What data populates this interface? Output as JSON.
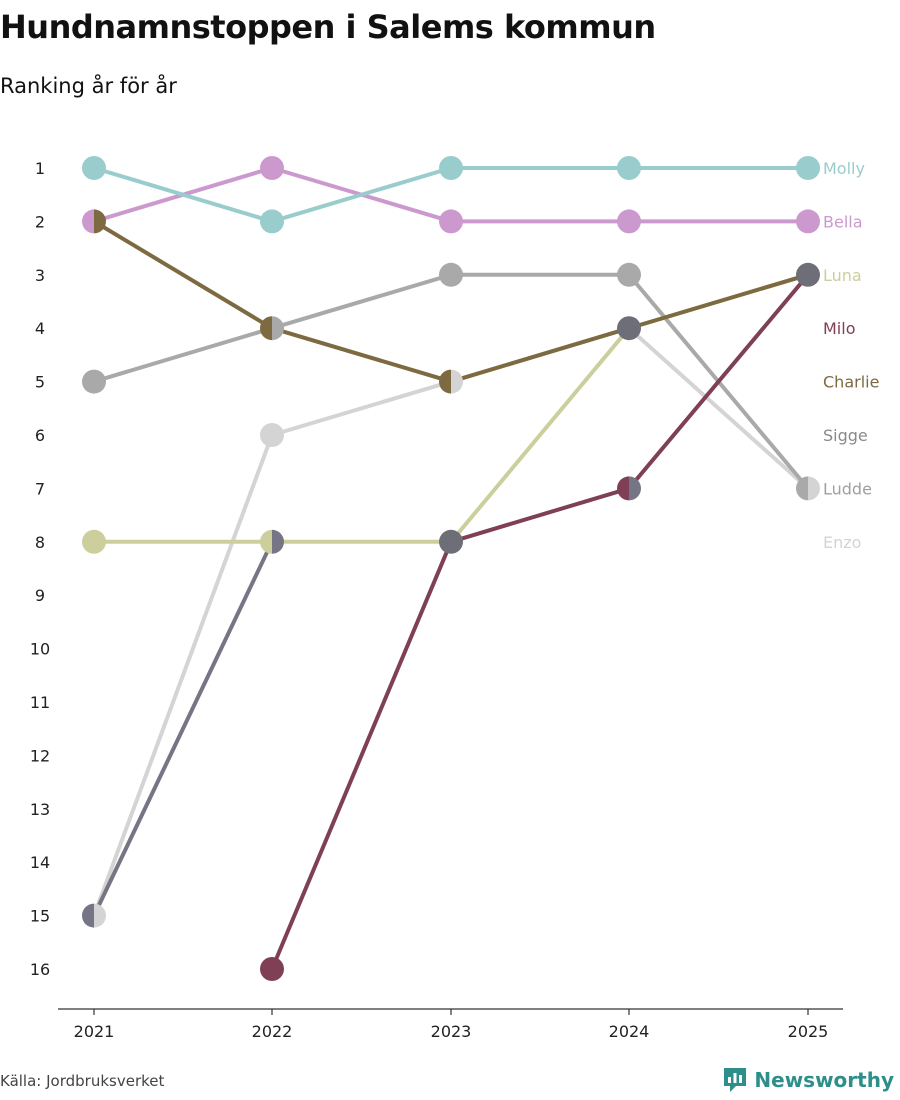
{
  "title": "Hundnamnstoppen i Salems kommun",
  "subtitle": "Ranking år för år",
  "source": "Källa: Jordbruksverket",
  "logo_text": "Newsworthy",
  "logo_icon": "bar-chart-icon",
  "chart_data": {
    "type": "bump",
    "title": "Hundnamnstoppen i Salems kommun",
    "subtitle": "Ranking år för år",
    "x": [
      "2021",
      "2022",
      "2023",
      "2024",
      "2025"
    ],
    "y_ticks": [
      "1",
      "2",
      "3",
      "4",
      "5",
      "6",
      "7",
      "8",
      "9",
      "10",
      "11",
      "12",
      "13",
      "14",
      "15",
      "16"
    ],
    "ylim": [
      1,
      16
    ],
    "y_inverted": true,
    "series": [
      {
        "name": "Enzo",
        "color": "#d4d4d4",
        "values": [
          15,
          6,
          5,
          4,
          7
        ]
      },
      {
        "name": "Sigge",
        "color": "#a9a9a9",
        "values": [
          5,
          4,
          3,
          3,
          7
        ]
      },
      {
        "name": "Ludde",
        "color": "#757585",
        "values": [
          15,
          8,
          null,
          null,
          null
        ]
      },
      {
        "name": "Luna",
        "color": "#cccf9c",
        "values": [
          8,
          8,
          8,
          4,
          3
        ]
      },
      {
        "name": "Charlie",
        "color": "#7d6a40",
        "values": [
          2,
          4,
          5,
          4,
          3
        ]
      },
      {
        "name": "Milo",
        "color": "#7f4055",
        "values": [
          null,
          16,
          8,
          7,
          3
        ]
      },
      {
        "name": "Bella",
        "color": "#cc99cf",
        "values": [
          2,
          1,
          2,
          2,
          2
        ]
      },
      {
        "name": "Molly",
        "color": "#99cccc",
        "values": [
          1,
          2,
          1,
          1,
          1
        ]
      }
    ],
    "labels": [
      {
        "name": "Molly",
        "rank": 1,
        "color": "#99cccc"
      },
      {
        "name": "Bella",
        "rank": 2,
        "color": "#cc99cf"
      },
      {
        "name": "Luna",
        "rank": 3,
        "color": "#cccf9c"
      },
      {
        "name": "Milo",
        "rank": 4,
        "color": "#7f4055"
      },
      {
        "name": "Charlie",
        "rank": 5,
        "color": "#7d6a40"
      },
      {
        "name": "Sigge",
        "rank": 6,
        "color": "#8a8a8a"
      },
      {
        "name": "Ludde",
        "rank": 7,
        "color": "#a0a0a0"
      },
      {
        "name": "Enzo",
        "rank": 8,
        "color": "#d4d4d4"
      }
    ],
    "markers": [
      {
        "x": "2021",
        "rank": 1,
        "colors": [
          "#99cccc"
        ]
      },
      {
        "x": "2021",
        "rank": 2,
        "colors": [
          "#cc99cf",
          "#7d6a40"
        ]
      },
      {
        "x": "2021",
        "rank": 5,
        "colors": [
          "#a9a9a9"
        ]
      },
      {
        "x": "2021",
        "rank": 8,
        "colors": [
          "#cccf9c"
        ]
      },
      {
        "x": "2021",
        "rank": 15,
        "colors": [
          "#757585",
          "#d4d4d4"
        ]
      },
      {
        "x": "2022",
        "rank": 1,
        "colors": [
          "#cc99cf"
        ]
      },
      {
        "x": "2022",
        "rank": 2,
        "colors": [
          "#99cccc"
        ]
      },
      {
        "x": "2022",
        "rank": 4,
        "colors": [
          "#7d6a40",
          "#a9a9a9"
        ]
      },
      {
        "x": "2022",
        "rank": 6,
        "colors": [
          "#d4d4d4"
        ]
      },
      {
        "x": "2022",
        "rank": 8,
        "colors": [
          "#cccf9c",
          "#757585"
        ]
      },
      {
        "x": "2022",
        "rank": 16,
        "colors": [
          "#7f4055"
        ]
      },
      {
        "x": "2023",
        "rank": 1,
        "colors": [
          "#99cccc"
        ]
      },
      {
        "x": "2023",
        "rank": 2,
        "colors": [
          "#cc99cf"
        ]
      },
      {
        "x": "2023",
        "rank": 3,
        "colors": [
          "#a9a9a9"
        ]
      },
      {
        "x": "2023",
        "rank": 5,
        "colors": [
          "#7d6a40",
          "#d4d4d4"
        ]
      },
      {
        "x": "2023",
        "rank": 8,
        "colors": [
          "#6e6e78"
        ]
      },
      {
        "x": "2024",
        "rank": 1,
        "colors": [
          "#99cccc"
        ]
      },
      {
        "x": "2024",
        "rank": 2,
        "colors": [
          "#cc99cf"
        ]
      },
      {
        "x": "2024",
        "rank": 3,
        "colors": [
          "#a9a9a9"
        ]
      },
      {
        "x": "2024",
        "rank": 4,
        "colors": [
          "#6e6e78"
        ]
      },
      {
        "x": "2024",
        "rank": 7,
        "colors": [
          "#7f4055",
          "#757585"
        ]
      },
      {
        "x": "2025",
        "rank": 1,
        "colors": [
          "#99cccc"
        ]
      },
      {
        "x": "2025",
        "rank": 2,
        "colors": [
          "#cc99cf"
        ]
      },
      {
        "x": "2025",
        "rank": 3,
        "colors": [
          "#6e6e78"
        ]
      },
      {
        "x": "2025",
        "rank": 7,
        "colors": [
          "#a9a9a9",
          "#d4d4d4"
        ]
      }
    ]
  }
}
